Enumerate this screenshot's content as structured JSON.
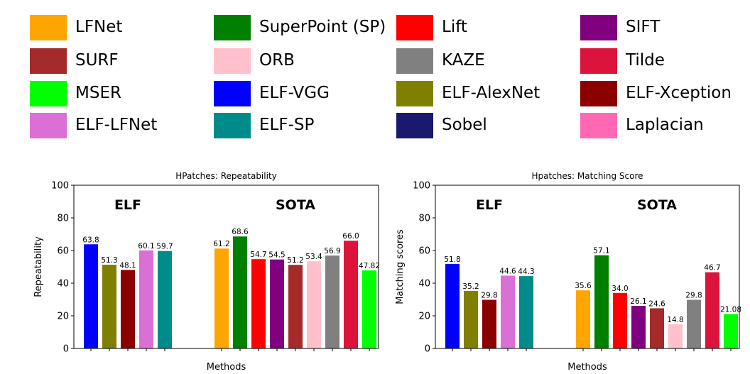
{
  "legend": [
    {
      "label": "LFNet",
      "color": "#ffa500"
    },
    {
      "label": "SuperPoint (SP)",
      "color": "#008000"
    },
    {
      "label": "Lift",
      "color": "#ff0000"
    },
    {
      "label": "SIFT",
      "color": "#800080"
    },
    {
      "label": "SURF",
      "color": "#a52a2a"
    },
    {
      "label": "ORB",
      "color": "#ffc0cb"
    },
    {
      "label": "KAZE",
      "color": "#808080"
    },
    {
      "label": "Tilde",
      "color": "#dc143c"
    },
    {
      "label": "MSER",
      "color": "#00ff00"
    },
    {
      "label": "ELF-VGG",
      "color": "#0000ff"
    },
    {
      "label": "ELF-AlexNet",
      "color": "#808000"
    },
    {
      "label": "ELF-Xception",
      "color": "#8b0000"
    },
    {
      "label": "ELF-LFNet",
      "color": "#da70d6"
    },
    {
      "label": "ELF-SP",
      "color": "#008b8b"
    },
    {
      "label": "Sobel",
      "color": "#191970"
    },
    {
      "label": "Laplacian",
      "color": "#ff69b4"
    }
  ],
  "chart_data": [
    {
      "type": "bar",
      "title": "HPatches: Repeatability",
      "xlabel": "Methods",
      "ylabel": "Repeatability",
      "ylim": [
        0,
        100
      ],
      "yticks": [
        "0",
        "20",
        "40",
        "60",
        "80",
        "100"
      ],
      "group_labels": [
        "ELF",
        "SOTA"
      ],
      "groups": [
        {
          "label": "ELF",
          "bars": [
            {
              "method": "ELF-VGG",
              "value": 63.8,
              "label": "63.8",
              "color": "#0000ff"
            },
            {
              "method": "ELF-AlexNet",
              "value": 51.3,
              "label": "51.3",
              "color": "#808000"
            },
            {
              "method": "ELF-Xception",
              "value": 48.1,
              "label": "48.1",
              "color": "#8b0000"
            },
            {
              "method": "ELF-LFNet",
              "value": 60.1,
              "label": "60.1",
              "color": "#da70d6"
            },
            {
              "method": "ELF-SP",
              "value": 59.7,
              "label": "59.7",
              "color": "#008b8b"
            }
          ]
        },
        {
          "label": "SOTA",
          "bars": [
            {
              "method": "LFNet",
              "value": 61.2,
              "label": "61.2",
              "color": "#ffa500"
            },
            {
              "method": "SuperPoint (SP)",
              "value": 68.6,
              "label": "68.6",
              "color": "#008000"
            },
            {
              "method": "Lift",
              "value": 54.7,
              "label": "54.7",
              "color": "#ff0000"
            },
            {
              "method": "SIFT",
              "value": 54.5,
              "label": "54.5",
              "color": "#800080"
            },
            {
              "method": "SURF",
              "value": 51.2,
              "label": "51.2",
              "color": "#a52a2a"
            },
            {
              "method": "ORB",
              "value": 53.4,
              "label": "53.4",
              "color": "#ffc0cb"
            },
            {
              "method": "KAZE",
              "value": 56.9,
              "label": "56.9",
              "color": "#808080"
            },
            {
              "method": "Tilde",
              "value": 66.0,
              "label": "66.0",
              "color": "#dc143c"
            },
            {
              "method": "MSER",
              "value": 47.82,
              "label": "47.82",
              "color": "#00ff00"
            }
          ]
        }
      ]
    },
    {
      "type": "bar",
      "title": "Hpatches: Matching Score",
      "xlabel": "Methods",
      "ylabel": "Matching scores",
      "ylim": [
        0,
        100
      ],
      "yticks": [
        "0",
        "20",
        "40",
        "60",
        "80",
        "100"
      ],
      "group_labels": [
        "ELF",
        "SOTA"
      ],
      "groups": [
        {
          "label": "ELF",
          "bars": [
            {
              "method": "ELF-VGG",
              "value": 51.8,
              "label": "51.8",
              "color": "#0000ff"
            },
            {
              "method": "ELF-AlexNet",
              "value": 35.2,
              "label": "35.2",
              "color": "#808000"
            },
            {
              "method": "ELF-Xception",
              "value": 29.8,
              "label": "29.8",
              "color": "#8b0000"
            },
            {
              "method": "ELF-LFNet",
              "value": 44.6,
              "label": "44.6",
              "color": "#da70d6"
            },
            {
              "method": "ELF-SP",
              "value": 44.3,
              "label": "44.3",
              "color": "#008b8b"
            }
          ]
        },
        {
          "label": "SOTA",
          "bars": [
            {
              "method": "LFNet",
              "value": 35.6,
              "label": "35.6",
              "color": "#ffa500"
            },
            {
              "method": "SuperPoint (SP)",
              "value": 57.1,
              "label": "57.1",
              "color": "#008000"
            },
            {
              "method": "Lift",
              "value": 34.0,
              "label": "34.0",
              "color": "#ff0000"
            },
            {
              "method": "SIFT",
              "value": 26.1,
              "label": "26.1",
              "color": "#800080"
            },
            {
              "method": "SURF",
              "value": 24.6,
              "label": "24.6",
              "color": "#a52a2a"
            },
            {
              "method": "ORB",
              "value": 14.8,
              "label": "14.8",
              "color": "#ffc0cb"
            },
            {
              "method": "KAZE",
              "value": 29.8,
              "label": "29.8",
              "color": "#808080"
            },
            {
              "method": "Tilde",
              "value": 46.7,
              "label": "46.7",
              "color": "#dc143c"
            },
            {
              "method": "MSER",
              "value": 21.08,
              "label": "21.08",
              "color": "#00ff00"
            }
          ]
        }
      ]
    }
  ]
}
